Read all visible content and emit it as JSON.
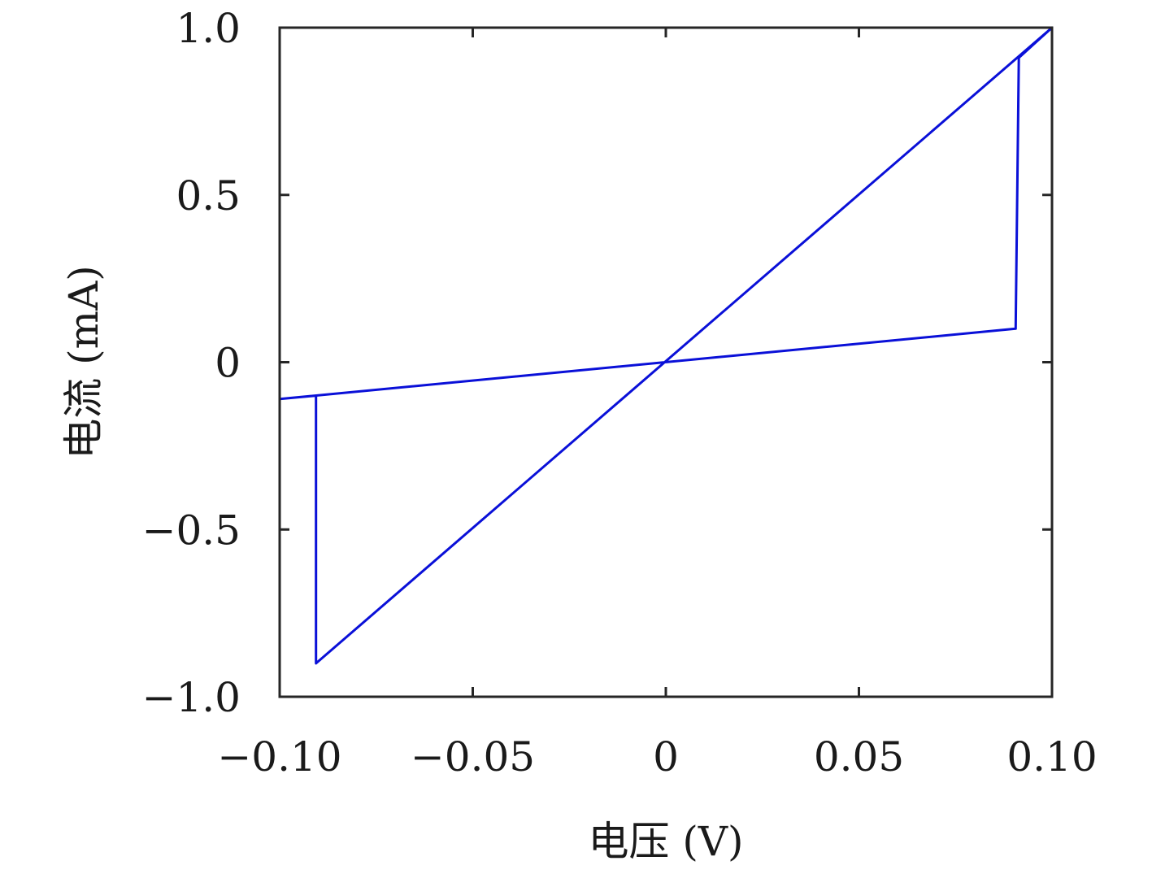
{
  "chart_data": {
    "type": "line",
    "title": "",
    "xlabel": "电压 (V)",
    "ylabel": "电流 (mA)",
    "xlim": [
      -0.1,
      0.1
    ],
    "ylim": [
      -1.0,
      1.0
    ],
    "xticks": [
      -0.1,
      -0.05,
      0,
      0.05,
      0.1
    ],
    "xtick_labels": [
      "−0.10",
      "−0.05",
      "0",
      "0.05",
      "0.10"
    ],
    "yticks": [
      -1.0,
      -0.5,
      0,
      0.5,
      1.0
    ],
    "ytick_labels": [
      "−1.0",
      "−0.5",
      "0",
      "0.5",
      "1.0"
    ],
    "grid": false,
    "legend": "none",
    "series": [
      {
        "color": "#0a10d8",
        "x": [
          -0.1,
          0.0906,
          0.0914,
          0.1,
          -0.0906,
          -0.0906,
          -0.1
        ],
        "y": [
          -0.11,
          0.1,
          0.91,
          1.0,
          -0.9,
          -0.1,
          -0.11
        ]
      }
    ]
  }
}
